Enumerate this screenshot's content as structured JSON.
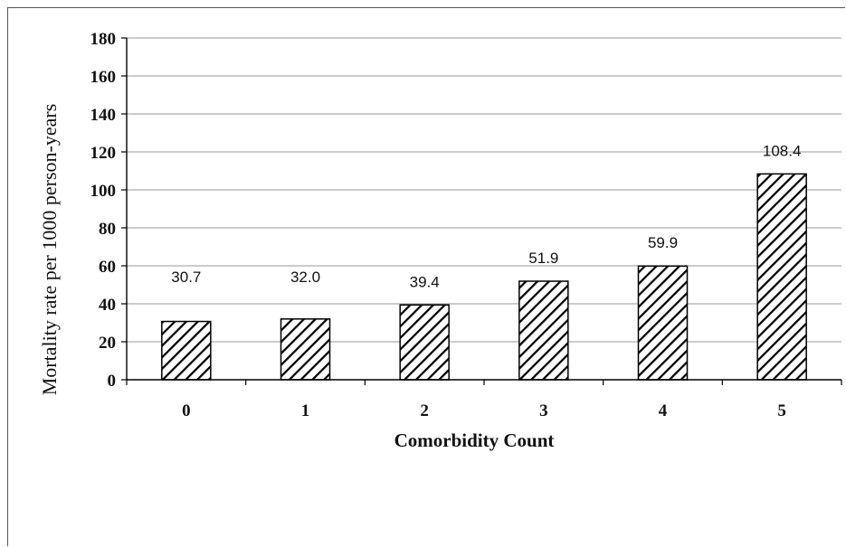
{
  "chart_data": {
    "type": "bar",
    "categories": [
      "0",
      "1",
      "2",
      "3",
      "4",
      "5"
    ],
    "values": [
      30.7,
      32.0,
      39.4,
      51.9,
      59.9,
      108.4
    ],
    "data_labels": [
      "30.7",
      "32.0",
      "39.4",
      "51.9",
      "59.9",
      "108.4"
    ],
    "xlabel": "Comorbidity Count",
    "ylabel": "Mortality rate per 1000 person-years",
    "ylim": [
      0,
      180
    ],
    "yticks": [
      "0",
      "20",
      "40",
      "60",
      "80",
      "100",
      "120",
      "140",
      "160",
      "180"
    ],
    "grid": "horizontal",
    "bar_fill": "diagonal-hatch",
    "colors": {
      "bar_stroke": "#000000",
      "hatch": "#000000",
      "grid": "#9a9a9a"
    }
  }
}
